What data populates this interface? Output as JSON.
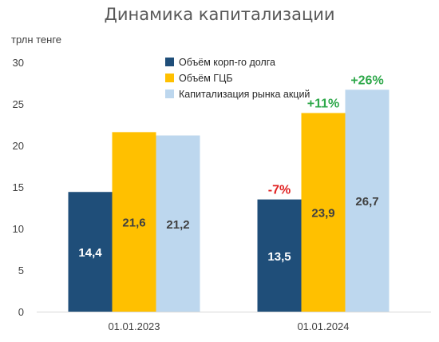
{
  "chart_data": {
    "type": "bar",
    "title": "Динамика капитализации",
    "ylabel": "трлн тенге",
    "xlabel": "",
    "ylim": [
      0,
      30
    ],
    "yticks": [
      "0",
      "5",
      "10",
      "15",
      "20",
      "25",
      "30"
    ],
    "grid": false,
    "legend": "top-center",
    "categories": [
      "01.01.2023",
      "01.01.2024"
    ],
    "series": [
      {
        "name": "Объём корп-го долга",
        "color": "#1F4E79",
        "values": [
          14.4,
          13.5
        ],
        "labels": [
          "14,4",
          "13,5"
        ],
        "label_color": "#ffffff"
      },
      {
        "name": "Объём ГЦБ",
        "color": "#FFC000",
        "values": [
          21.6,
          23.9
        ],
        "labels": [
          "21,6",
          "23,9"
        ],
        "label_color": "#404040"
      },
      {
        "name": "Капитализация рынка акций",
        "color": "#BDD7EE",
        "values": [
          21.2,
          26.7
        ],
        "labels": [
          "21,2",
          "26,7"
        ],
        "label_color": "#404040"
      }
    ],
    "annotations": [
      {
        "category": 1,
        "series": 0,
        "text": "-7%",
        "color": "#E02020"
      },
      {
        "category": 1,
        "series": 1,
        "text": "+11%",
        "color": "#2EA84A"
      },
      {
        "category": 1,
        "series": 2,
        "text": "+26%",
        "color": "#2EA84A"
      }
    ]
  }
}
